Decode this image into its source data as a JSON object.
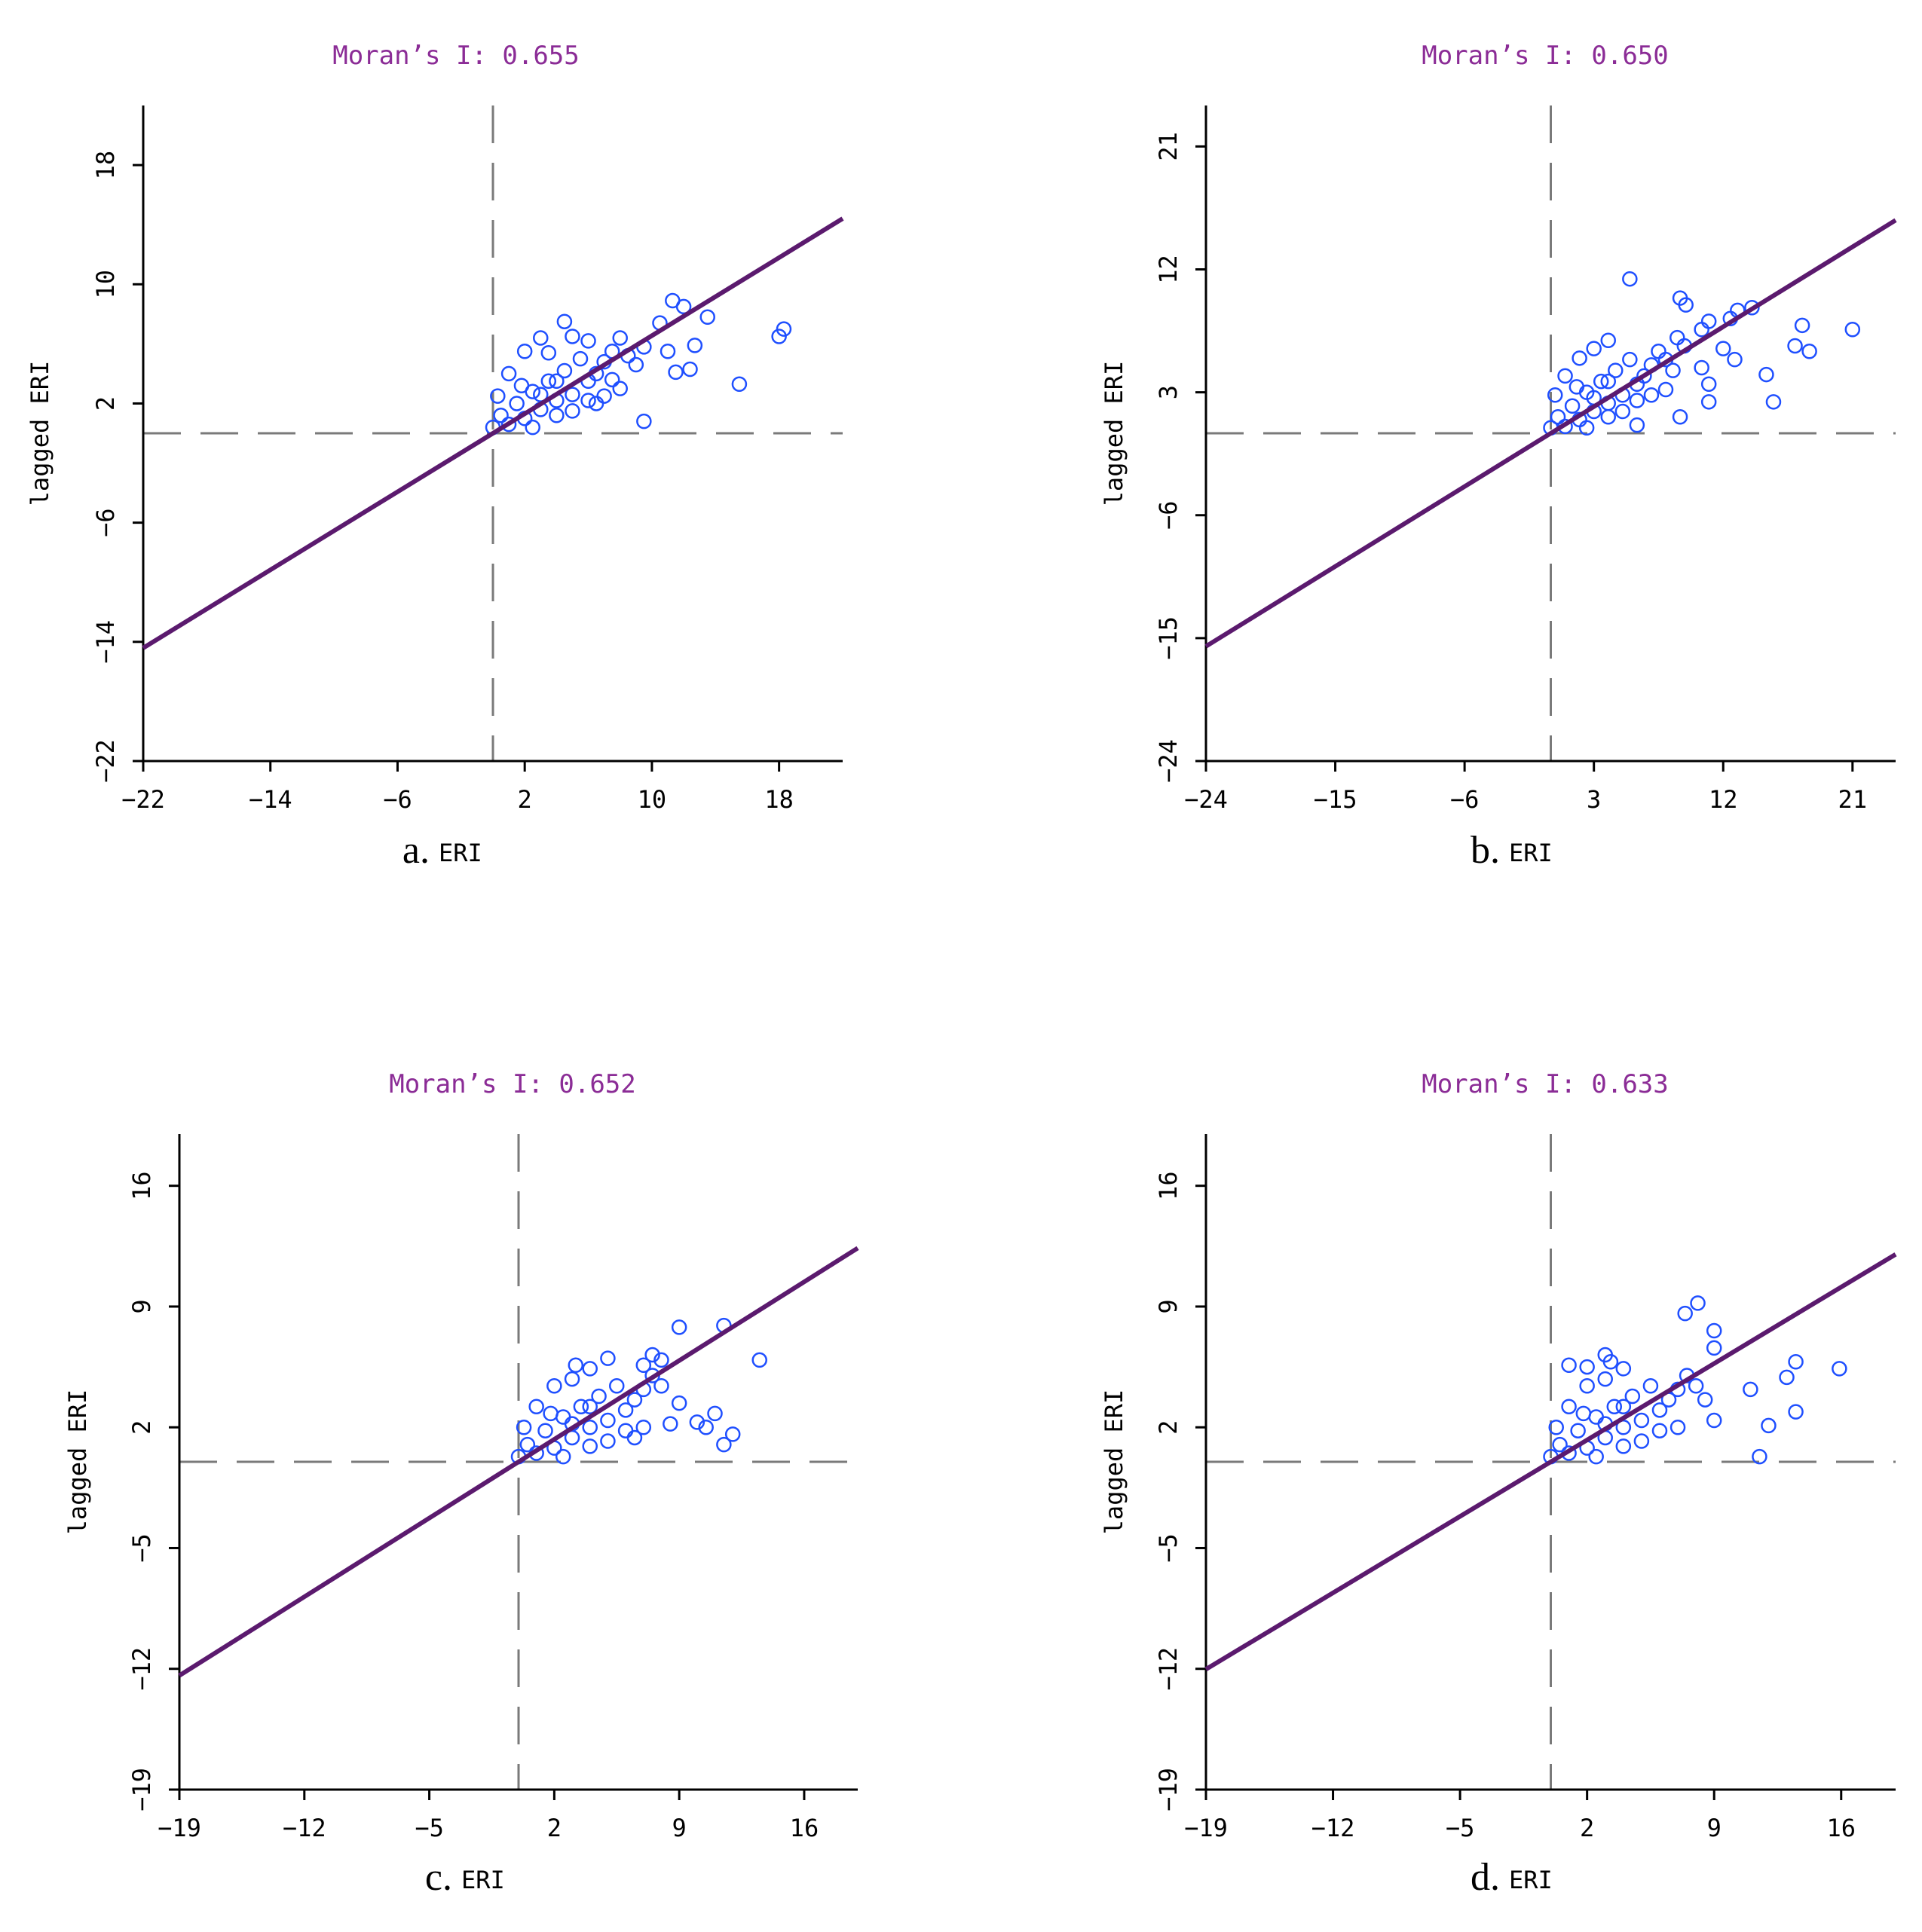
{
  "colors": {
    "regression": "#5b1a6e",
    "points": "#1f4fff",
    "title": "#8b2c96",
    "dashed": "#7a7a7a",
    "axis": "#000000"
  },
  "chart_data": [
    {
      "type": "scatter",
      "panel": "a.",
      "title": "Moran’s I: 0.655",
      "xlabel": "ERI",
      "ylabel": "lagged ERI",
      "xlim": [
        -22,
        22
      ],
      "ylim": [
        -22,
        22
      ],
      "xticks": [
        -22,
        -14,
        -6,
        2,
        10,
        18
      ],
      "yticks": [
        -22,
        -14,
        -6,
        2,
        10,
        18
      ],
      "slope": 0.655,
      "reference_lines": {
        "x": 0,
        "y": 0
      },
      "points": [
        [
          0,
          0.4
        ],
        [
          0.5,
          1.2
        ],
        [
          1,
          0.6
        ],
        [
          1.5,
          2
        ],
        [
          2,
          1
        ],
        [
          2.5,
          2.8
        ],
        [
          3,
          1.6
        ],
        [
          3.5,
          3.5
        ],
        [
          4,
          2.2
        ],
        [
          4.5,
          4.2
        ],
        [
          5,
          2.6
        ],
        [
          5.5,
          5
        ],
        [
          6,
          3.5
        ],
        [
          6.5,
          4
        ],
        [
          7,
          4.8
        ],
        [
          7.5,
          5.5
        ],
        [
          8,
          6.4
        ],
        [
          8.5,
          5.2
        ],
        [
          9,
          4.6
        ],
        [
          3,
          6.4
        ],
        [
          4.5,
          7.5
        ],
        [
          2,
          5.5
        ],
        [
          1,
          4
        ],
        [
          0.3,
          2.5
        ],
        [
          2.5,
          0.4
        ],
        [
          4,
          1.2
        ],
        [
          5,
          1.5
        ],
        [
          6,
          2.2
        ],
        [
          7,
          2.5
        ],
        [
          8,
          3
        ],
        [
          6,
          6.2
        ],
        [
          5,
          6.5
        ],
        [
          3.5,
          5.4
        ],
        [
          1.8,
          3.2
        ],
        [
          3,
          2.6
        ],
        [
          4,
          3.5
        ],
        [
          6.5,
          2
        ],
        [
          7.5,
          3.6
        ],
        [
          9.5,
          5.8
        ],
        [
          10.5,
          7.4
        ],
        [
          11.3,
          8.9
        ],
        [
          12,
          8.5
        ],
        [
          11,
          5.5
        ],
        [
          11.5,
          4.1
        ],
        [
          12.4,
          4.3
        ],
        [
          12.7,
          5.9
        ],
        [
          13.5,
          7.8
        ],
        [
          15.5,
          3.3
        ],
        [
          18,
          6.5
        ],
        [
          18.3,
          7
        ],
        [
          9.5,
          0.8
        ]
      ]
    },
    {
      "type": "scatter",
      "panel": "b.",
      "title": "Moran’s I: 0.650",
      "xlabel": "ERI",
      "ylabel": "lagged ERI",
      "xlim": [
        -24,
        24
      ],
      "ylim": [
        -24,
        24
      ],
      "xticks": [
        -24,
        -15,
        -6,
        3,
        12,
        21
      ],
      "yticks": [
        -24,
        -15,
        -6,
        3,
        12,
        21
      ],
      "slope": 0.65,
      "reference_lines": {
        "x": 0,
        "y": 0
      },
      "points": [
        [
          0,
          0.4
        ],
        [
          0.5,
          1.2
        ],
        [
          1,
          0.5
        ],
        [
          1.5,
          2
        ],
        [
          2,
          1
        ],
        [
          2.5,
          3
        ],
        [
          3,
          1.6
        ],
        [
          3.5,
          3.8
        ],
        [
          4,
          2.2
        ],
        [
          4.5,
          4.6
        ],
        [
          5,
          2.8
        ],
        [
          5.5,
          5.4
        ],
        [
          6,
          3.6
        ],
        [
          6.5,
          4.2
        ],
        [
          7,
          5
        ],
        [
          7.5,
          6
        ],
        [
          8,
          5.4
        ],
        [
          8.5,
          4.6
        ],
        [
          3,
          6.2
        ],
        [
          4,
          6.8
        ],
        [
          2,
          5.5
        ],
        [
          1,
          4.2
        ],
        [
          0.3,
          2.8
        ],
        [
          2.5,
          0.4
        ],
        [
          4,
          1.2
        ],
        [
          5,
          1.6
        ],
        [
          6,
          2.4
        ],
        [
          7,
          2.8
        ],
        [
          8,
          3.2
        ],
        [
          1.8,
          3.4
        ],
        [
          3,
          2.6
        ],
        [
          4,
          3.8
        ],
        [
          6,
          0.6
        ],
        [
          8.8,
          7
        ],
        [
          9.3,
          6.4
        ],
        [
          5.5,
          11.3
        ],
        [
          9,
          9.9
        ],
        [
          9.4,
          9.4
        ],
        [
          10.5,
          7.6
        ],
        [
          11,
          8.2
        ],
        [
          12,
          6.2
        ],
        [
          12.5,
          8.4
        ],
        [
          11,
          3.6
        ],
        [
          12.8,
          5.4
        ],
        [
          13,
          9
        ],
        [
          14,
          9.2
        ],
        [
          15,
          4.3
        ],
        [
          15.5,
          2.3
        ],
        [
          17,
          6.4
        ],
        [
          17.5,
          7.9
        ],
        [
          18,
          6
        ],
        [
          21,
          7.6
        ],
        [
          10.5,
          4.8
        ],
        [
          11,
          2.3
        ],
        [
          9,
          1.2
        ]
      ]
    },
    {
      "type": "scatter",
      "panel": "c.",
      "title": "Moran’s I: 0.652",
      "xlabel": "ERI",
      "ylabel": "lagged ERI",
      "xlim": [
        -19,
        19
      ],
      "ylim": [
        -19,
        19
      ],
      "xticks": [
        -19,
        -12,
        -5,
        2,
        9,
        16
      ],
      "yticks": [
        -19,
        -12,
        -5,
        2,
        9,
        16
      ],
      "slope": 0.652,
      "reference_lines": {
        "x": 0,
        "y": 0
      },
      "points": [
        [
          0,
          0.3
        ],
        [
          0.5,
          1
        ],
        [
          1,
          0.5
        ],
        [
          1.5,
          1.8
        ],
        [
          2,
          0.8
        ],
        [
          2.5,
          2.6
        ],
        [
          3,
          1.4
        ],
        [
          3.5,
          3.2
        ],
        [
          4,
          2
        ],
        [
          4.5,
          3.8
        ],
        [
          5,
          2.4
        ],
        [
          5.5,
          4.4
        ],
        [
          6,
          3
        ],
        [
          6.5,
          3.6
        ],
        [
          7,
          4.2
        ],
        [
          7.5,
          5
        ],
        [
          8,
          4.4
        ],
        [
          3,
          4.8
        ],
        [
          4,
          5.4
        ],
        [
          2,
          4.4
        ],
        [
          1,
          3.2
        ],
        [
          0.3,
          2
        ],
        [
          2.5,
          0.3
        ],
        [
          4,
          0.9
        ],
        [
          5,
          1.2
        ],
        [
          6,
          1.8
        ],
        [
          7,
          2
        ],
        [
          1.8,
          2.8
        ],
        [
          3,
          2.2
        ],
        [
          4,
          3.2
        ],
        [
          6.5,
          1.4
        ],
        [
          7.5,
          6.2
        ],
        [
          8,
          5.9
        ],
        [
          7,
          5.6
        ],
        [
          5,
          6
        ],
        [
          3.2,
          5.6
        ],
        [
          9,
          7.8
        ],
        [
          11.5,
          7.9
        ],
        [
          13.5,
          5.9
        ],
        [
          10,
          2.3
        ],
        [
          10.5,
          2
        ],
        [
          9,
          3.4
        ],
        [
          8.5,
          2.2
        ],
        [
          11,
          2.8
        ],
        [
          12,
          1.6
        ],
        [
          11.5,
          1
        ]
      ]
    },
    {
      "type": "scatter",
      "panel": "d.",
      "title": "Moran’s I: 0.633",
      "xlabel": "ERI",
      "ylabel": "lagged ERI",
      "xlim": [
        -19,
        19
      ],
      "ylim": [
        -19,
        19
      ],
      "xticks": [
        -19,
        -12,
        -5,
        2,
        9,
        16
      ],
      "yticks": [
        -19,
        -12,
        -5,
        2,
        9,
        16
      ],
      "slope": 0.633,
      "reference_lines": {
        "x": 0,
        "y": 0
      },
      "points": [
        [
          0,
          0.3
        ],
        [
          0.5,
          1
        ],
        [
          1,
          0.5
        ],
        [
          1.5,
          1.8
        ],
        [
          2,
          0.8
        ],
        [
          2.5,
          2.6
        ],
        [
          3,
          1.4
        ],
        [
          3.5,
          3.2
        ],
        [
          4,
          2
        ],
        [
          4.5,
          3.8
        ],
        [
          5,
          2.4
        ],
        [
          5.5,
          4.4
        ],
        [
          6,
          3
        ],
        [
          6.5,
          3.6
        ],
        [
          7,
          4.2
        ],
        [
          7.5,
          5
        ],
        [
          8,
          4.4
        ],
        [
          8.5,
          3.6
        ],
        [
          9,
          2.4
        ],
        [
          3,
          4.8
        ],
        [
          4,
          5.4
        ],
        [
          2,
          4.4
        ],
        [
          1,
          3.2
        ],
        [
          0.3,
          2
        ],
        [
          2.5,
          0.3
        ],
        [
          4,
          0.9
        ],
        [
          5,
          1.2
        ],
        [
          6,
          1.8
        ],
        [
          7,
          2
        ],
        [
          1.8,
          2.8
        ],
        [
          3,
          2.2
        ],
        [
          4,
          3.2
        ],
        [
          1,
          5.6
        ],
        [
          2,
          5.5
        ],
        [
          3,
          6.2
        ],
        [
          3.3,
          5.8
        ],
        [
          7.4,
          8.6
        ],
        [
          8.1,
          9.2
        ],
        [
          9,
          7.6
        ],
        [
          9,
          6.6
        ],
        [
          11,
          4.2
        ],
        [
          12,
          2.1
        ],
        [
          11.5,
          0.3
        ],
        [
          13,
          4.9
        ],
        [
          13.5,
          5.8
        ],
        [
          13.5,
          2.9
        ],
        [
          15.9,
          5.4
        ]
      ]
    }
  ]
}
